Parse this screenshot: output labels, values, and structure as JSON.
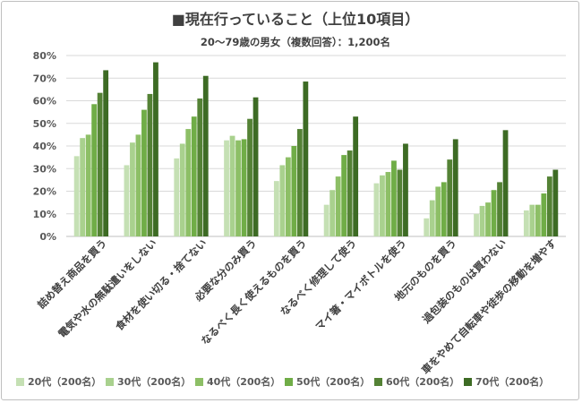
{
  "chart_data": {
    "type": "bar",
    "title": "■現在行っていること（上位10項目）",
    "subtitle": "20～79歳の男女（複数回答）：1,200名",
    "ylim": [
      0,
      80
    ],
    "yticks": [
      "0%",
      "10%",
      "20%",
      "30%",
      "40%",
      "50%",
      "60%",
      "70%",
      "80%"
    ],
    "grid": true,
    "legend_position": "bottom",
    "categories": [
      "詰め替え商品を買う",
      "電気や水の無駄遣いをしない",
      "食材を使い切る・捨てない",
      "必要な分のみ買う",
      "なるべく長く使えるものを買う",
      "なるべく修理して使う",
      "マイ箸・マイボトルを使う",
      "地元のものを買う",
      "過包装のものは買わない",
      "車をやめて自転車や徒歩の移動を増やす"
    ],
    "series": [
      {
        "name": "20代（200名）",
        "color": "#c5e0b4",
        "values": [
          35.5,
          31.5,
          34.5,
          42.5,
          24.5,
          14,
          23.5,
          8,
          10,
          11.5
        ]
      },
      {
        "name": "30代（200名）",
        "color": "#a9d18e",
        "values": [
          43.5,
          41.5,
          41,
          44.5,
          31.5,
          20.5,
          27,
          16,
          13.5,
          14
        ]
      },
      {
        "name": "40代（200名）",
        "color": "#8dbf66",
        "values": [
          45,
          45,
          47.5,
          42.5,
          35,
          26.5,
          28.5,
          22,
          15,
          14
        ]
      },
      {
        "name": "50代（200名）",
        "color": "#70ad47",
        "values": [
          58.5,
          56,
          53,
          43,
          40,
          36,
          33.5,
          24,
          20.5,
          19
        ]
      },
      {
        "name": "60代（200名）",
        "color": "#548235",
        "values": [
          63.5,
          63,
          61,
          52,
          47.5,
          38,
          29.5,
          34,
          24,
          26.5
        ]
      },
      {
        "name": "70代（200名）",
        "color": "#3d6b24",
        "values": [
          73.5,
          77,
          71,
          61.5,
          68.5,
          53,
          41,
          43,
          47,
          29.5
        ]
      }
    ]
  }
}
